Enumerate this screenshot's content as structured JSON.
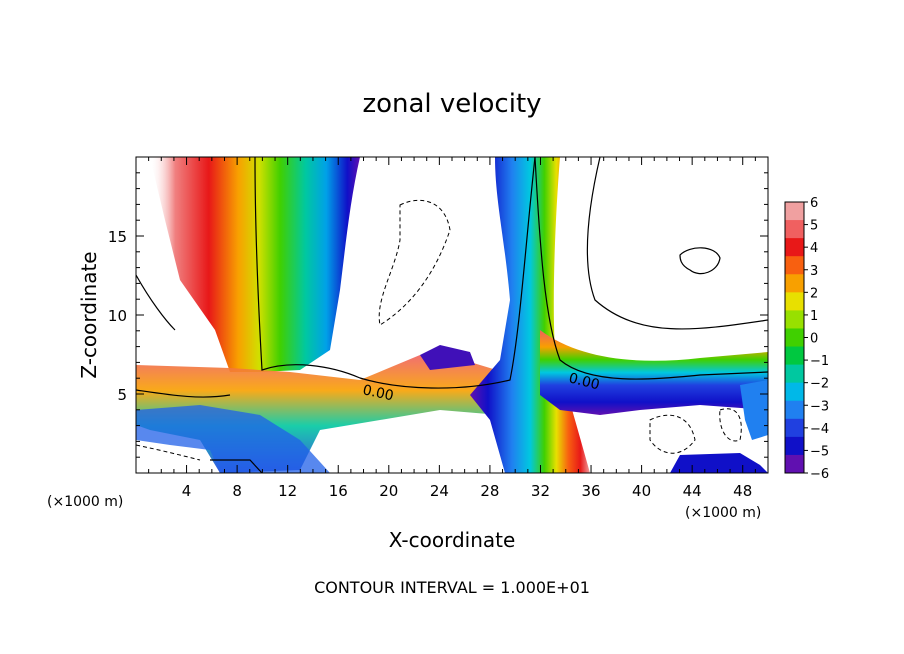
{
  "chart_data": {
    "type": "heatmap",
    "title": "zonal velocity",
    "xlabel": "X-coordinate",
    "ylabel": "Z-coordinate",
    "x_unit_label": "(×1000 m)",
    "y_unit_label": "(×1000 m)",
    "footer": "CONTOUR INTERVAL = 1.000E+01",
    "xlim": [
      0,
      50
    ],
    "ylim": [
      0,
      20
    ],
    "x_ticks": [
      4,
      8,
      12,
      16,
      20,
      24,
      28,
      32,
      36,
      40,
      44,
      48
    ],
    "y_ticks": [
      5,
      10,
      15
    ],
    "colorbar": {
      "min": -6,
      "max": 6,
      "tick_labels": [
        "6",
        "5",
        "4",
        "3",
        "2",
        "1",
        "0",
        "−1",
        "−2",
        "−3",
        "−4",
        "−5",
        "−6"
      ],
      "colors": [
        "#f0a0a0",
        "#f06060",
        "#e81818",
        "#f86010",
        "#f8a000",
        "#e8e000",
        "#98e000",
        "#40d000",
        "#00c840",
        "#00c8a0",
        "#00b8e8",
        "#2080f0",
        "#2040e0",
        "#1010c8",
        "#6010b0"
      ]
    },
    "contour_labels": [
      {
        "text": "0.00",
        "x": 19,
        "y": 5.2
      },
      {
        "text": "0.00",
        "x": 35,
        "y": 5.8
      }
    ],
    "regions": [
      {
        "name": "strong negative column",
        "x_center": 15.5,
        "value": -5
      },
      {
        "name": "strong positive column",
        "x_center": 5,
        "value": 6
      },
      {
        "name": "central jet",
        "x_center": 31.5,
        "value": -2
      },
      {
        "name": "right positive band",
        "x_center": 33,
        "value": 4
      },
      {
        "name": "low-level jet",
        "z_center": 5.5,
        "value": -3
      }
    ]
  }
}
